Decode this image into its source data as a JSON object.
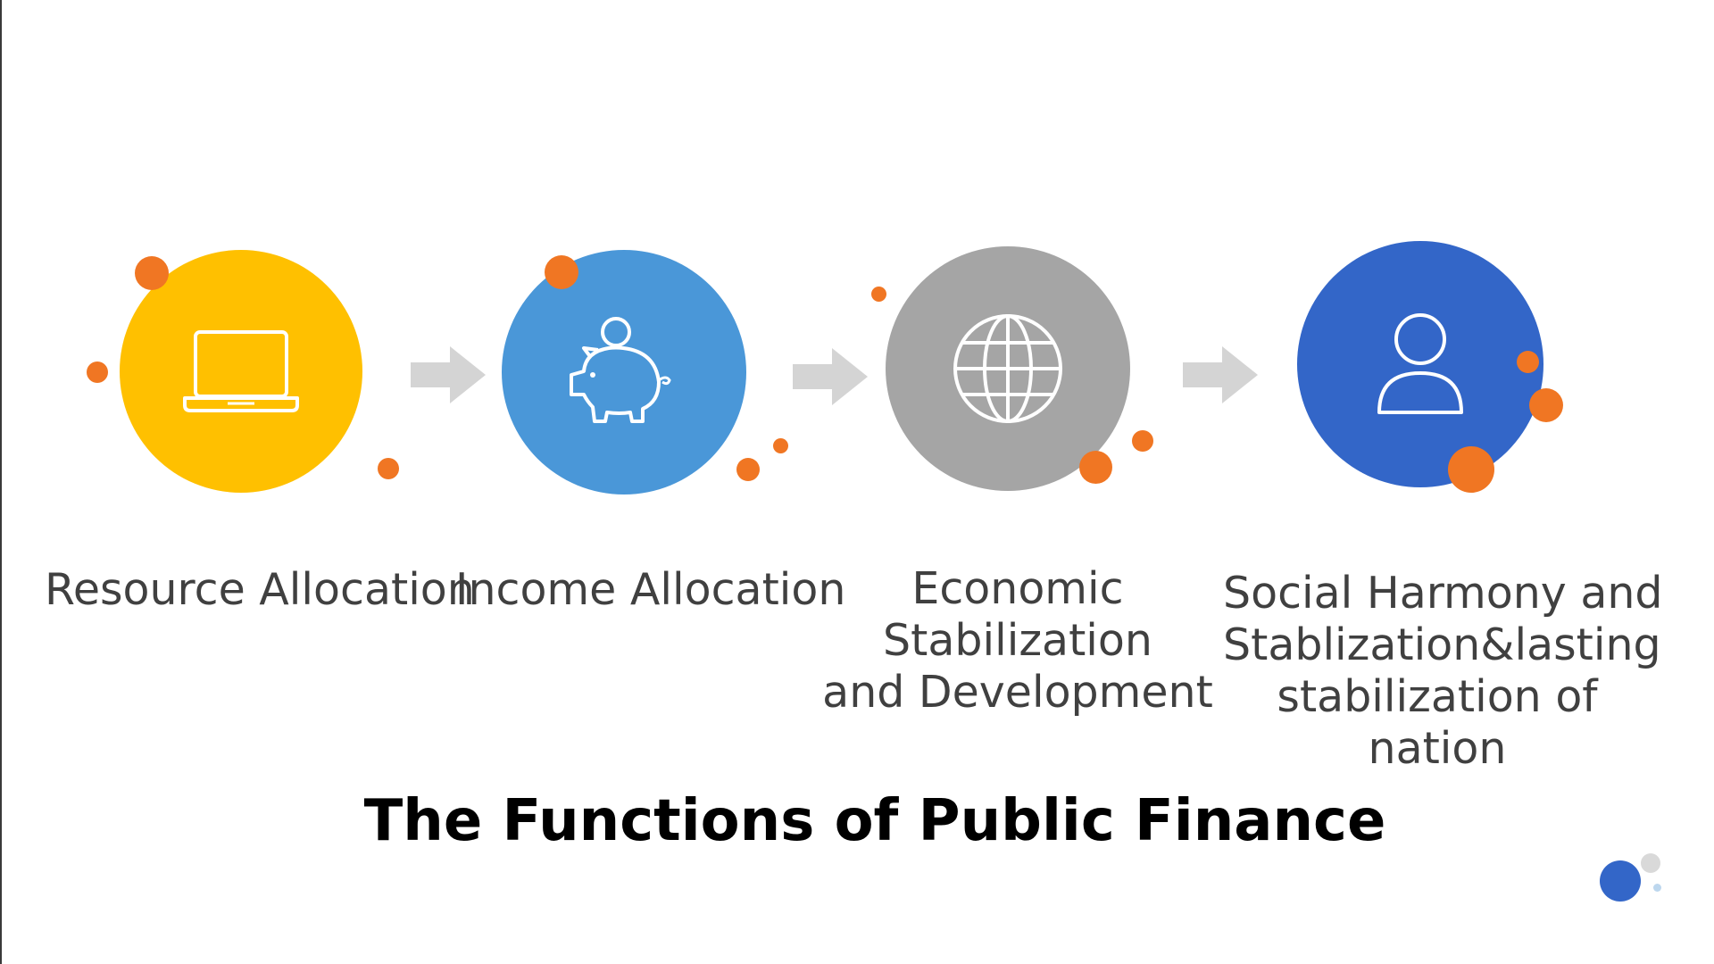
{
  "title": "The Functions of Public Finance",
  "colors": {
    "yellow": "#FFC000",
    "light_blue": "#4A97D8",
    "gray": "#A5A5A5",
    "dark_blue": "#3366C8",
    "accent_dot": "#F07623",
    "arrow": "#D4D4D4",
    "label_text": "#404040"
  },
  "steps": [
    {
      "icon": "laptop-icon",
      "label_lines": [
        "Resource Allocation"
      ]
    },
    {
      "icon": "piggy-bank-icon",
      "label_lines": [
        "Income Allocation"
      ]
    },
    {
      "icon": "globe-icon",
      "label_lines": [
        "Economic",
        "Stabilization",
        "and Development"
      ]
    },
    {
      "icon": "person-icon",
      "label_lines": [
        "Social Harmony and",
        "Stablization&lasting",
        "stabilization of",
        "nation"
      ]
    }
  ]
}
